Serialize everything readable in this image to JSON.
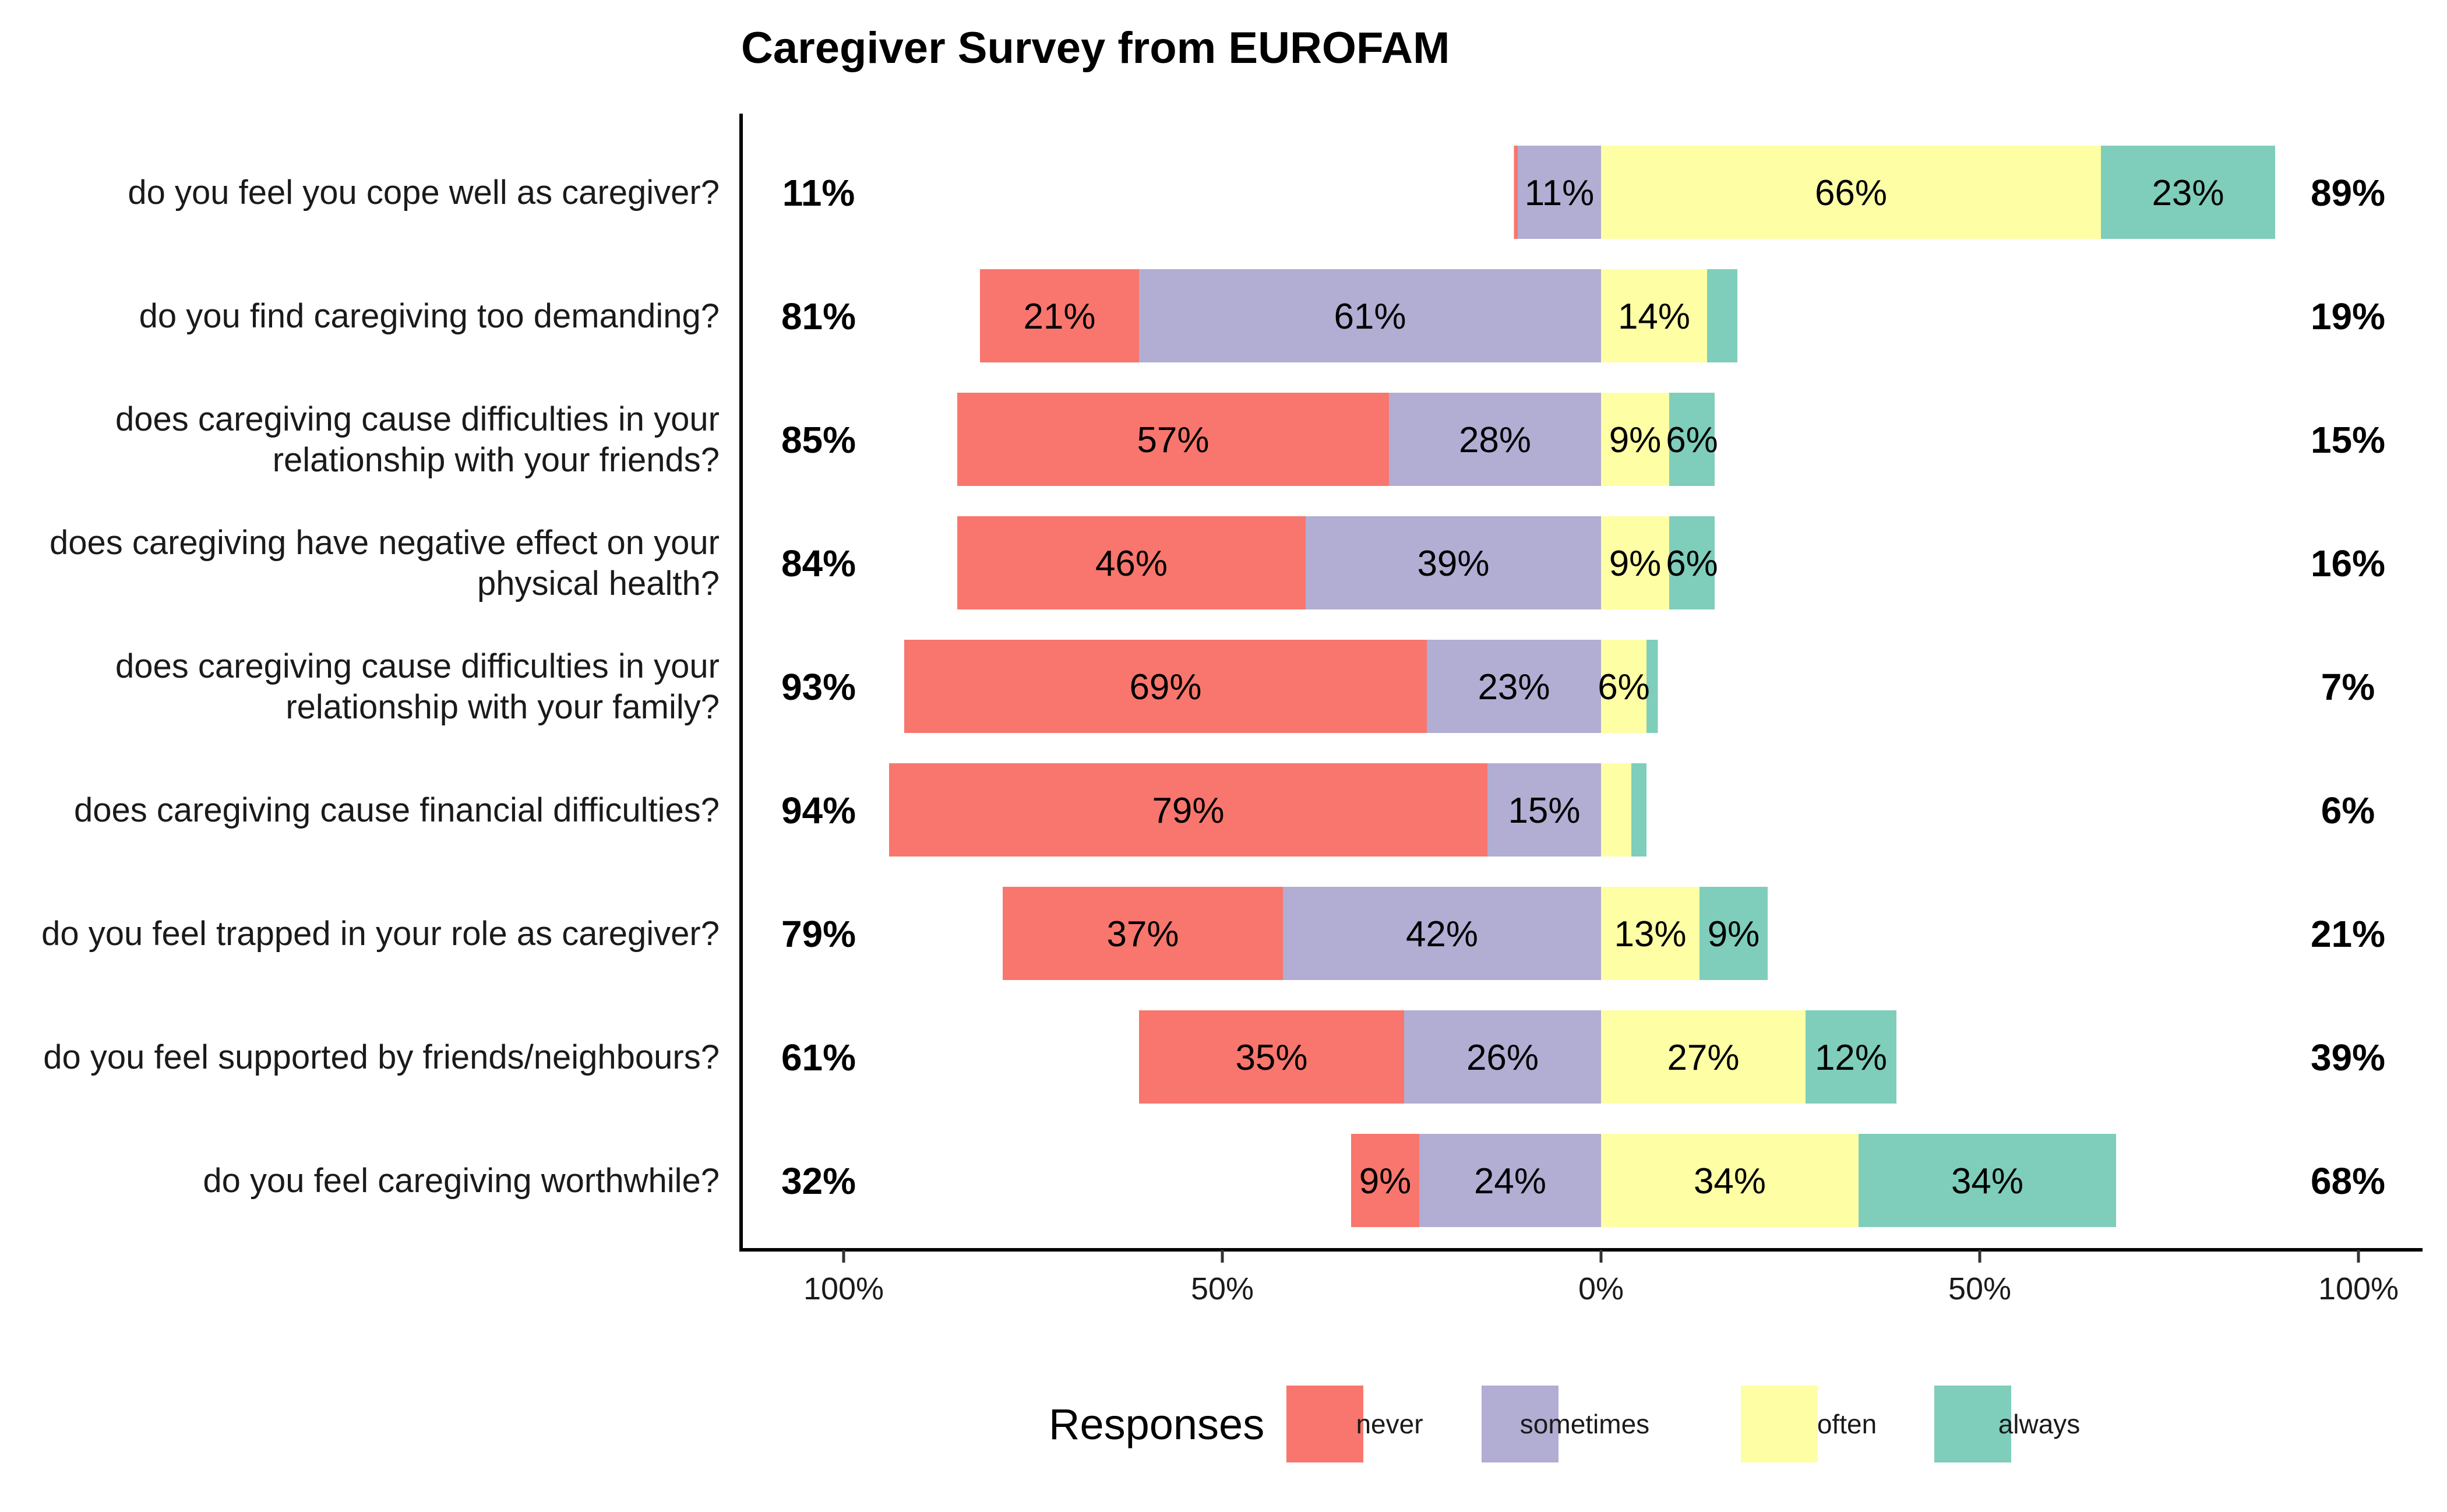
{
  "chart_data": {
    "type": "bar",
    "orientation": "horizontal",
    "stacked": "diverging",
    "title": "Caregiver Survey from EUROFAM",
    "xlabel": "",
    "ylabel": "",
    "xlim": [
      -114,
      108
    ],
    "x_ticks": [
      {
        "value": -100,
        "label": "100%"
      },
      {
        "value": -50,
        "label": "50%"
      },
      {
        "value": 0,
        "label": "0%"
      },
      {
        "value": 50,
        "label": "50%"
      },
      {
        "value": 100,
        "label": "100%"
      }
    ],
    "grid": false,
    "legend": {
      "title": "Responses",
      "position": "bottom"
    },
    "categories": [
      [
        "do you feel you cope well as caregiver?"
      ],
      [
        "do you find caregiving too demanding?"
      ],
      [
        "does caregiving cause difficulties in your",
        "relationship with your friends?"
      ],
      [
        "does caregiving have negative effect on your",
        "physical health?"
      ],
      [
        "does caregiving cause difficulties in your",
        "relationship with your family?"
      ],
      [
        "does caregiving cause financial difficulties?"
      ],
      [
        "do you feel trapped in your role as caregiver?"
      ],
      [
        "do you feel supported by friends/neighbours?"
      ],
      [
        "do you feel caregiving worthwhile?"
      ]
    ],
    "series": [
      {
        "name": "never",
        "side": "negative",
        "color": "#F8766D",
        "values": [
          0.5,
          21,
          57,
          46,
          69,
          79,
          37,
          35,
          9
        ],
        "labels": [
          "",
          "21%",
          "57%",
          "46%",
          "69%",
          "79%",
          "37%",
          "35%",
          "9%"
        ]
      },
      {
        "name": "sometimes",
        "side": "negative",
        "color": "#B1ADD3",
        "values": [
          11,
          61,
          28,
          39,
          23,
          15,
          42,
          26,
          24
        ],
        "labels": [
          "11%",
          "61%",
          "28%",
          "39%",
          "23%",
          "15%",
          "42%",
          "26%",
          "24%"
        ]
      },
      {
        "name": "often",
        "side": "positive",
        "color": "#FEFFA5",
        "values": [
          66,
          14,
          9,
          9,
          6,
          4,
          13,
          27,
          34
        ],
        "labels": [
          "66%",
          "14%",
          "9%",
          "9%",
          "6%",
          "",
          "13%",
          "27%",
          "34%"
        ]
      },
      {
        "name": "always",
        "side": "positive",
        "color": "#7FCDBB",
        "values": [
          23,
          4,
          6,
          6,
          1.5,
          2,
          9,
          12,
          34
        ],
        "labels": [
          "23%",
          "",
          "6%",
          "6%",
          "",
          "",
          "9%",
          "12%",
          "34%"
        ]
      }
    ],
    "left_totals": [
      "11%",
      "81%",
      "85%",
      "84%",
      "93%",
      "94%",
      "79%",
      "61%",
      "32%"
    ],
    "right_totals": [
      "89%",
      "19%",
      "15%",
      "16%",
      "7%",
      "6%",
      "21%",
      "39%",
      "68%"
    ]
  }
}
